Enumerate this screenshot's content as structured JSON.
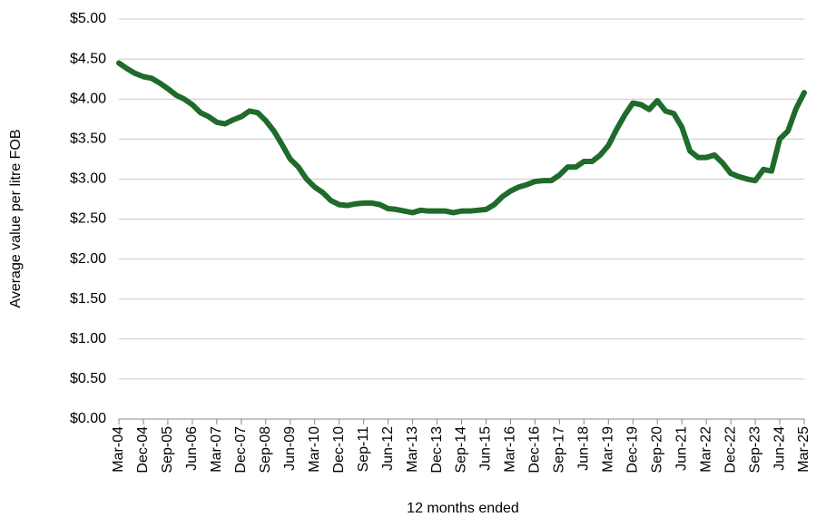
{
  "chart_data": {
    "type": "line",
    "x_label": "12 months ended",
    "y_label": "Average value per litre FOB",
    "color": "#1e6b2a",
    "grid": true,
    "categories": [
      "Mar-04",
      null,
      null,
      "Dec-04",
      null,
      null,
      "Sep-05",
      null,
      null,
      "Jun-06",
      null,
      null,
      "Mar-07",
      null,
      null,
      "Dec-07",
      null,
      null,
      "Sep-08",
      null,
      null,
      "Jun-09",
      null,
      null,
      "Mar-10",
      null,
      null,
      "Dec-10",
      null,
      null,
      "Sep-11",
      null,
      null,
      "Jun-12",
      null,
      null,
      "Mar-13",
      null,
      null,
      "Dec-13",
      null,
      null,
      "Sep-14",
      null,
      null,
      "Jun-15",
      null,
      null,
      "Mar-16",
      null,
      null,
      "Dec-16",
      null,
      null,
      "Sep-17",
      null,
      null,
      "Jun-18",
      null,
      null,
      "Mar-19",
      null,
      null,
      "Dec-19",
      null,
      null,
      "Sep-20",
      null,
      null,
      "Jun-21",
      null,
      null,
      "Mar-22",
      null,
      null,
      "Dec-22",
      null,
      null,
      "Sep-23",
      null,
      null,
      "Jun-24",
      null,
      null,
      "Mar-25"
    ],
    "values": [
      4.45,
      4.38,
      4.32,
      4.28,
      4.26,
      4.2,
      4.13,
      4.05,
      4.0,
      3.93,
      3.83,
      3.78,
      3.71,
      3.69,
      3.74,
      3.78,
      3.85,
      3.83,
      3.73,
      3.6,
      3.43,
      3.25,
      3.15,
      3.0,
      2.9,
      2.83,
      2.73,
      2.68,
      2.67,
      2.69,
      2.7,
      2.7,
      2.68,
      2.63,
      2.62,
      2.6,
      2.58,
      2.61,
      2.6,
      2.6,
      2.6,
      2.58,
      2.6,
      2.6,
      2.61,
      2.62,
      2.68,
      2.78,
      2.85,
      2.9,
      2.93,
      2.97,
      2.98,
      2.98,
      3.05,
      3.15,
      3.15,
      3.22,
      3.22,
      3.3,
      3.42,
      3.62,
      3.8,
      3.95,
      3.93,
      3.87,
      3.98,
      3.85,
      3.82,
      3.65,
      3.35,
      3.27,
      3.27,
      3.3,
      3.2,
      3.07,
      3.03,
      3.0,
      2.98,
      3.12,
      3.1,
      3.5,
      3.6,
      3.88,
      4.08
    ],
    "ylim": [
      0,
      5
    ],
    "yticks": [
      {
        "value": 0,
        "label": "$0.00"
      },
      {
        "value": 0.5,
        "label": "$0.50"
      },
      {
        "value": 1,
        "label": "$1.00"
      },
      {
        "value": 1.5,
        "label": "$1.50"
      },
      {
        "value": 2,
        "label": "$2.00"
      },
      {
        "value": 2.5,
        "label": "$2.50"
      },
      {
        "value": 3,
        "label": "$3.00"
      },
      {
        "value": 3.5,
        "label": "$3.50"
      },
      {
        "value": 4,
        "label": "$4.00"
      },
      {
        "value": 4.5,
        "label": "$4.50"
      },
      {
        "value": 5,
        "label": "$5.00"
      }
    ]
  }
}
